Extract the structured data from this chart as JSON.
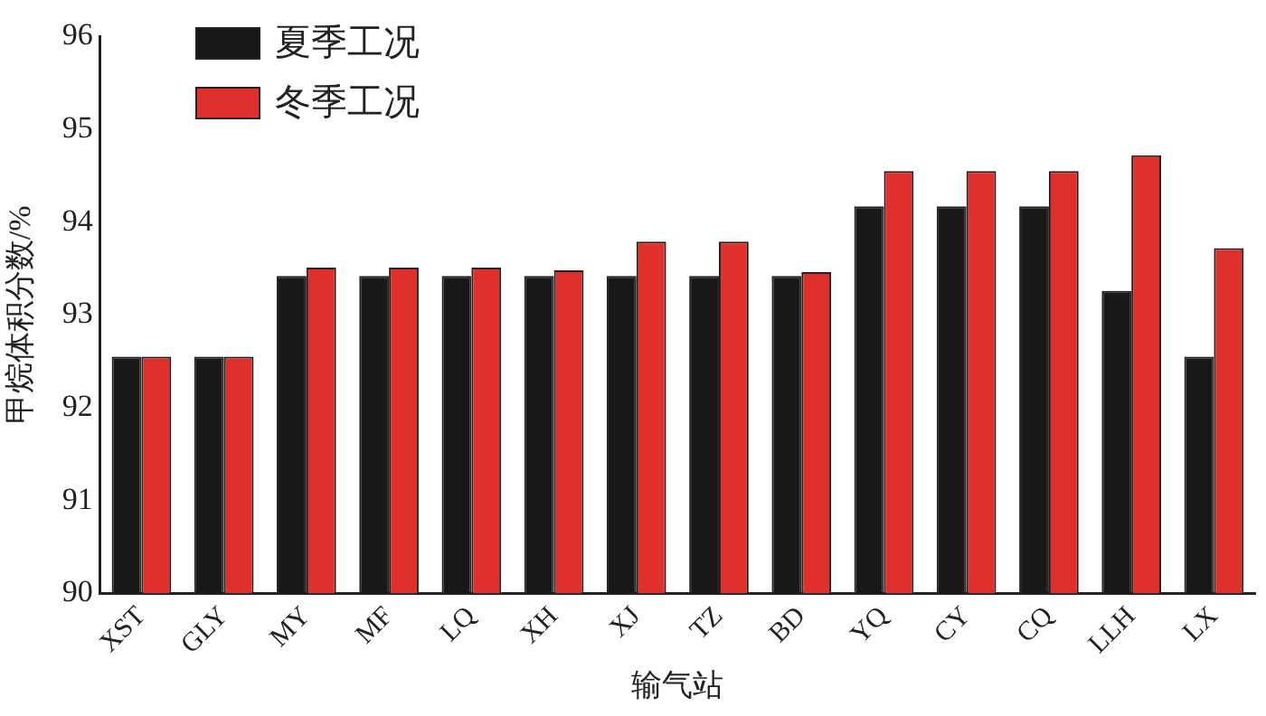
{
  "chart_data": {
    "type": "bar",
    "xlabel": "输气站",
    "ylabel": "甲烷体积分数/%",
    "categories": [
      "XST",
      "GLY",
      "MY",
      "MF",
      "LQ",
      "XH",
      "XJ",
      "TZ",
      "BD",
      "YQ",
      "CY",
      "CQ",
      "LLH",
      "LX"
    ],
    "series": [
      {
        "name": "夏季工况",
        "color": "#1a1816",
        "values": [
          92.55,
          92.55,
          93.42,
          93.42,
          93.42,
          93.42,
          93.42,
          93.42,
          93.42,
          94.17,
          94.17,
          94.17,
          93.26,
          92.55
        ]
      },
      {
        "name": "冬季工况",
        "color": "#e0302c",
        "values": [
          92.55,
          92.55,
          93.51,
          93.51,
          93.51,
          93.48,
          93.79,
          93.79,
          93.46,
          94.55,
          94.55,
          94.55,
          94.72,
          93.72
        ]
      }
    ],
    "ylim": [
      90,
      96
    ],
    "yticks": [
      90,
      91,
      92,
      93,
      94,
      95,
      96
    ],
    "grid": false,
    "legend": "top left"
  }
}
